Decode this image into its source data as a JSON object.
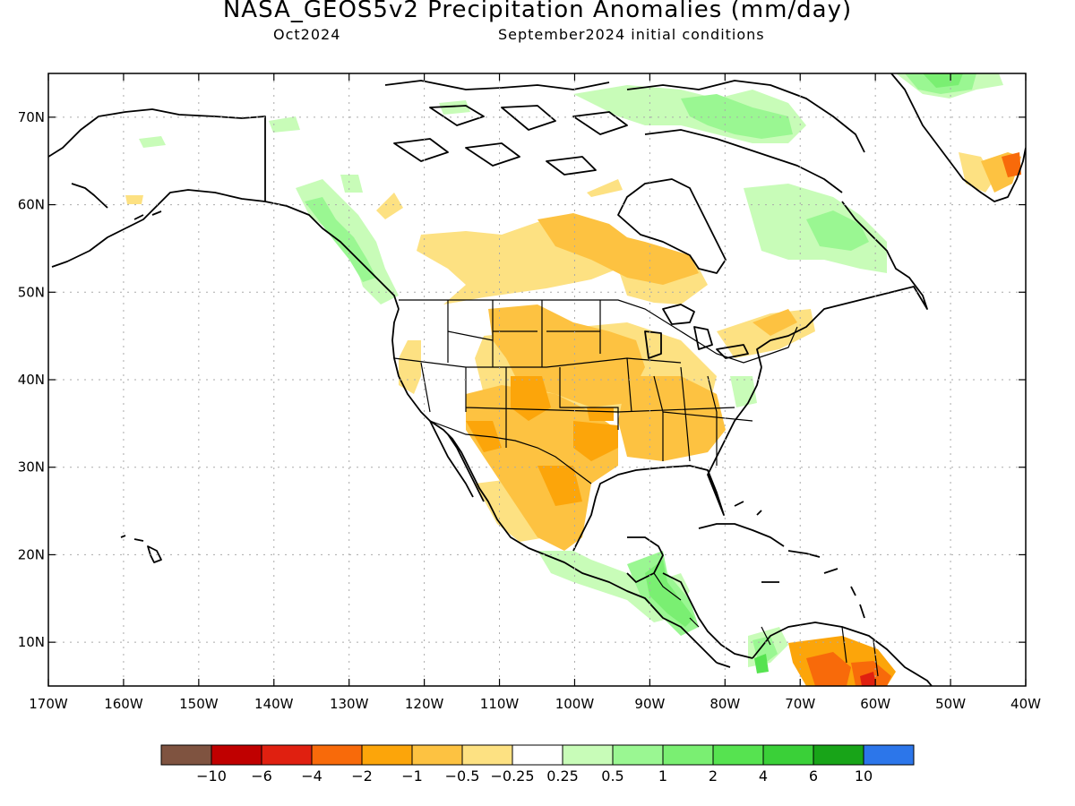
{
  "title": "NASA_GEOS5v2 Precipitation Anomalies (mm/day)",
  "subtitle_left": "Oct2024",
  "subtitle_right": "September2024 initial conditions",
  "map": {
    "lon_range": [
      -170,
      -40
    ],
    "lat_range": [
      5,
      75
    ],
    "lat_ticks": [
      {
        "value": 10,
        "label": "10N"
      },
      {
        "value": 20,
        "label": "20N"
      },
      {
        "value": 30,
        "label": "30N"
      },
      {
        "value": 40,
        "label": "40N"
      },
      {
        "value": 50,
        "label": "50N"
      },
      {
        "value": 60,
        "label": "60N"
      },
      {
        "value": 70,
        "label": "70N"
      }
    ],
    "lon_ticks": [
      {
        "value": -170,
        "label": "170W"
      },
      {
        "value": -160,
        "label": "160W"
      },
      {
        "value": -150,
        "label": "150W"
      },
      {
        "value": -140,
        "label": "140W"
      },
      {
        "value": -130,
        "label": "130W"
      },
      {
        "value": -120,
        "label": "120W"
      },
      {
        "value": -110,
        "label": "110W"
      },
      {
        "value": -100,
        "label": "100W"
      },
      {
        "value": -90,
        "label": "90W"
      },
      {
        "value": -80,
        "label": "80W"
      },
      {
        "value": -70,
        "label": "70W"
      },
      {
        "value": -60,
        "label": "60W"
      },
      {
        "value": -50,
        "label": "50W"
      },
      {
        "value": -40,
        "label": "40W"
      }
    ]
  },
  "colorbar": {
    "colors": [
      "#7f5340",
      "#c00000",
      "#e02010",
      "#f86a0a",
      "#fca50a",
      "#fdc241",
      "#fde182",
      "#ffffff",
      "#c8fcb8",
      "#9af792",
      "#7aef72",
      "#56e350",
      "#3ad038",
      "#18a418",
      "#2c76ea"
    ],
    "labels": [
      "−10",
      "−6",
      "−4",
      "−2",
      "−1",
      "−0.5",
      "−0.25",
      "0.25",
      "0.5",
      "1",
      "2",
      "4",
      "6",
      "10"
    ]
  }
}
